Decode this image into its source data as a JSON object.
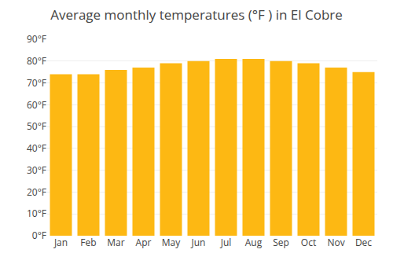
{
  "chart_data": {
    "type": "bar",
    "title": "Average monthly temperatures (°F ) in El Cobre",
    "categories": [
      "Jan",
      "Feb",
      "Mar",
      "Apr",
      "May",
      "Jun",
      "Jul",
      "Aug",
      "Sep",
      "Oct",
      "Nov",
      "Dec"
    ],
    "values": [
      74,
      74,
      76,
      77,
      79,
      80,
      81,
      81,
      80,
      79,
      77,
      75
    ],
    "color": "#FDB813",
    "ylim": [
      0,
      90
    ],
    "yticks": [
      {
        "value": 0,
        "label": "0°F"
      },
      {
        "value": 10,
        "label": "10°F"
      },
      {
        "value": 20,
        "label": "20°F"
      },
      {
        "value": 30,
        "label": "30°F"
      },
      {
        "value": 40,
        "label": "40°F"
      },
      {
        "value": 50,
        "label": "50°F"
      },
      {
        "value": 60,
        "label": "60°F"
      },
      {
        "value": 70,
        "label": "70°F"
      },
      {
        "value": 80,
        "label": "80°F"
      },
      {
        "value": 90,
        "label": "90°F"
      }
    ],
    "grid": true
  }
}
